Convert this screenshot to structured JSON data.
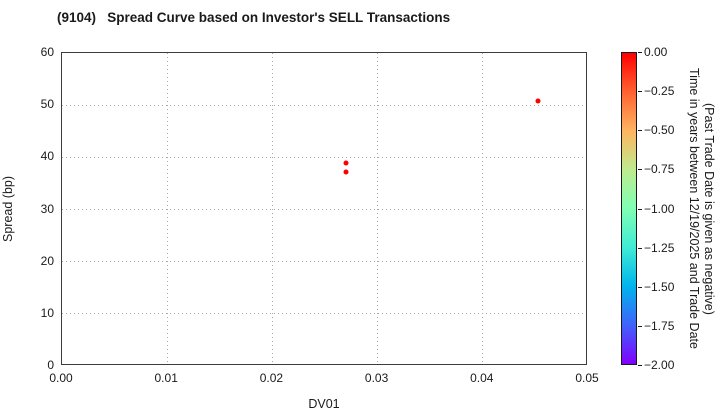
{
  "chart_data": {
    "type": "scatter",
    "title": "(9104)   Spread Curve based on Investor's SELL Transactions",
    "xlabel": "DV01",
    "ylabel": "Spread (bp)",
    "xlim": [
      0.0,
      0.05
    ],
    "ylim": [
      0,
      60
    ],
    "xtick_values": [
      0.0,
      0.01,
      0.02,
      0.03,
      0.04,
      0.05
    ],
    "xtick_labels": [
      "0.00",
      "0.01",
      "0.02",
      "0.03",
      "0.04",
      "0.05"
    ],
    "ytick_values": [
      0,
      10,
      20,
      30,
      40,
      50,
      60
    ],
    "ytick_labels": [
      "0",
      "10",
      "20",
      "30",
      "40",
      "50",
      "60"
    ],
    "grid": "dotted",
    "points": [
      {
        "x": 0.027,
        "y": 39.0,
        "time_value": 0.0,
        "color": "#ff0000"
      },
      {
        "x": 0.027,
        "y": 37.1,
        "time_value": 0.0,
        "color": "#ff0000"
      },
      {
        "x": 0.0452,
        "y": 50.8,
        "time_value": 0.0,
        "color": "#ff0000"
      }
    ],
    "colorbar": {
      "title_line1": "Time in years between 12/19/2025 and Trade Date",
      "title_line2": "(Past Trade Date is given as negative)",
      "vmax": 0.0,
      "vmin": -2.0,
      "tick_labels": [
        "0.00",
        "−0.25",
        "−0.50",
        "−0.75",
        "−1.00",
        "−1.25",
        "−1.50",
        "−1.75",
        "−2.00"
      ],
      "colormap": "rainbow",
      "gradient_stops": [
        {
          "pos": 0.0,
          "color": "#ff0000"
        },
        {
          "pos": 12.5,
          "color": "#ff6231"
        },
        {
          "pos": 25.0,
          "color": "#ffb461"
        },
        {
          "pos": 37.5,
          "color": "#bfeb8e"
        },
        {
          "pos": 50.0,
          "color": "#80ffb4"
        },
        {
          "pos": 62.5,
          "color": "#40ecd4"
        },
        {
          "pos": 75.0,
          "color": "#00b4ec"
        },
        {
          "pos": 87.5,
          "color": "#4062fa"
        },
        {
          "pos": 100.0,
          "color": "#8000ff"
        }
      ]
    }
  }
}
